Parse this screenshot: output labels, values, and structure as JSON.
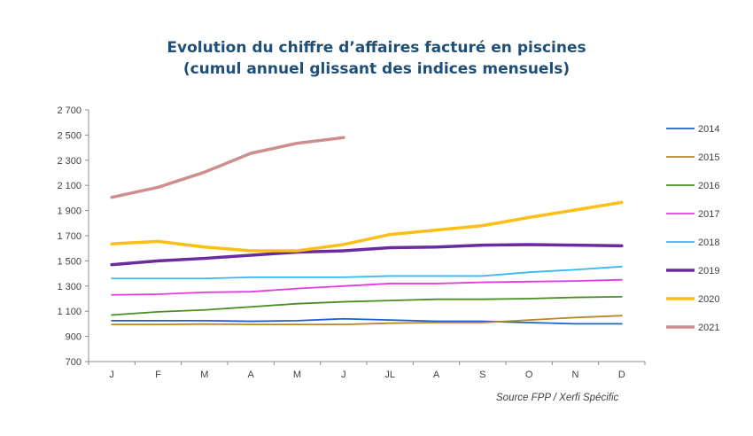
{
  "chart_data": {
    "type": "line",
    "title": "Evolution du chiffre d’affaires facturé en piscines",
    "subtitle": "(cumul annuel glissant des indices mensuels)",
    "xlabel": "",
    "ylabel": "",
    "categories": [
      "J",
      "F",
      "M",
      "A",
      "M",
      "J",
      "JL",
      "A",
      "S",
      "O",
      "N",
      "D"
    ],
    "ylim": [
      700,
      2700
    ],
    "yticks": [
      700,
      900,
      1100,
      1300,
      1500,
      1700,
      1900,
      2100,
      2300,
      2500,
      2700
    ],
    "ytick_labels": [
      "700",
      "900",
      "1 100",
      "1 300",
      "1 500",
      "1 700",
      "1 900",
      "2 100",
      "2 300",
      "2 500",
      "2 700"
    ],
    "grid": false,
    "legend_position": "right",
    "series": [
      {
        "name": "2014",
        "color": "#1f5fd6",
        "values": [
          1025,
          1025,
          1025,
          1020,
          1025,
          1040,
          1030,
          1020,
          1020,
          1010,
          1000,
          1000
        ]
      },
      {
        "name": "2015",
        "color": "#b8862b",
        "values": [
          995,
          995,
          998,
          995,
          995,
          995,
          1005,
          1010,
          1010,
          1030,
          1050,
          1065
        ]
      },
      {
        "name": "2016",
        "color": "#4a8f24",
        "values": [
          1070,
          1095,
          1110,
          1135,
          1160,
          1175,
          1185,
          1195,
          1195,
          1200,
          1210,
          1215
        ]
      },
      {
        "name": "2017",
        "color": "#e838e0",
        "values": [
          1230,
          1235,
          1250,
          1255,
          1280,
          1300,
          1320,
          1320,
          1330,
          1335,
          1340,
          1350
        ]
      },
      {
        "name": "2018",
        "color": "#38b8f0",
        "values": [
          1360,
          1360,
          1360,
          1370,
          1370,
          1370,
          1380,
          1380,
          1380,
          1410,
          1430,
          1455
        ]
      },
      {
        "name": "2019",
        "color": "#6a2aa0",
        "values": [
          1470,
          1500,
          1520,
          1545,
          1570,
          1580,
          1605,
          1610,
          1625,
          1630,
          1625,
          1620
        ]
      },
      {
        "name": "2020",
        "color": "#fbbf16",
        "values": [
          1635,
          1655,
          1610,
          1580,
          1580,
          1630,
          1710,
          1745,
          1780,
          1845,
          1905,
          1965
        ]
      },
      {
        "name": "2021",
        "color": "#cf8e8e",
        "values": [
          2005,
          2085,
          2205,
          2355,
          2435,
          2480,
          null,
          null,
          null,
          null,
          null,
          null
        ]
      }
    ],
    "source": "Source FPP / Xerfi Spécific"
  }
}
